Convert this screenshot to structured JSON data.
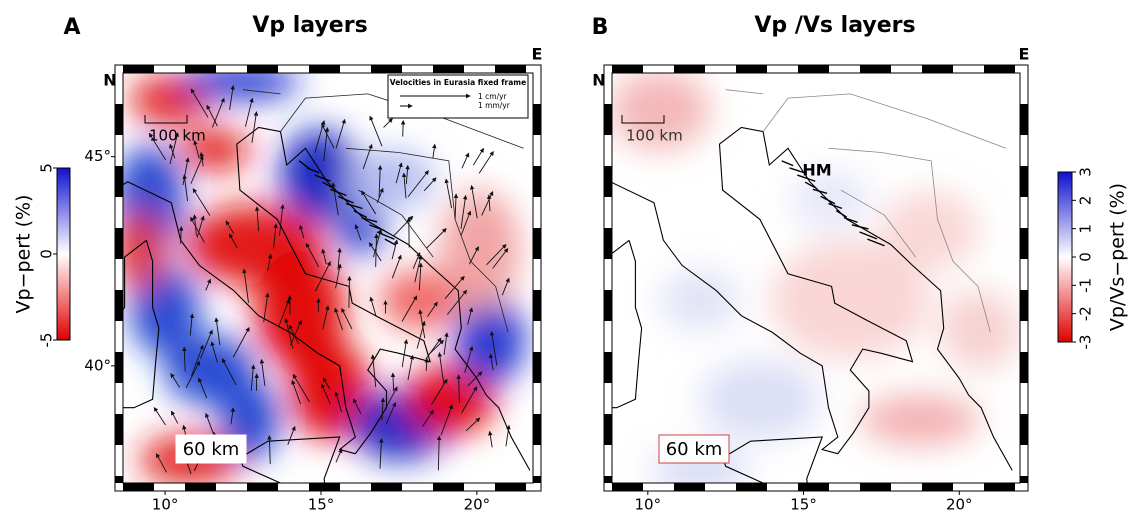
{
  "panels": [
    {
      "letter": "A",
      "title": "Vp layers",
      "north": "N",
      "east": "E",
      "depth_label": "60 km",
      "scale_label": "100 km",
      "legend": {
        "title": "Velocities in Eurasia fixed frame",
        "items": [
          "1 cm/yr",
          "1 mm/yr"
        ]
      },
      "xlim": [
        8.65,
        21.8
      ],
      "ylim": [
        37.2,
        47
      ],
      "xticks": [
        {
          "value": 10,
          "label": "10°"
        },
        {
          "value": 15,
          "label": "15°"
        },
        {
          "value": 20,
          "label": "20°"
        }
      ],
      "yticks": [
        {
          "value": 45,
          "label": "45°"
        },
        {
          "value": 40,
          "label": "40°"
        }
      ],
      "colorbar": {
        "label": "Vp−pert (%)",
        "lim": [
          -5,
          5
        ],
        "ticks": [
          5,
          0,
          -5
        ]
      }
    },
    {
      "letter": "B",
      "title": "Vp /Vs layers",
      "north": "N",
      "east": "E",
      "depth_label": "60 km",
      "scale_label": "100 km",
      "annotation": "HM",
      "xlim": [
        8.85,
        21.95
      ],
      "ylim": [
        37.2,
        47
      ],
      "xticks": [
        {
          "value": 10,
          "label": "10°"
        },
        {
          "value": 15,
          "label": "15°"
        },
        {
          "value": 20,
          "label": "20°"
        }
      ],
      "colorbar": {
        "label": "Vp/Vs−pert (%)",
        "lim": [
          -3,
          3
        ],
        "ticks": [
          -3,
          -2,
          -1,
          0,
          1,
          2,
          3
        ]
      }
    }
  ]
}
